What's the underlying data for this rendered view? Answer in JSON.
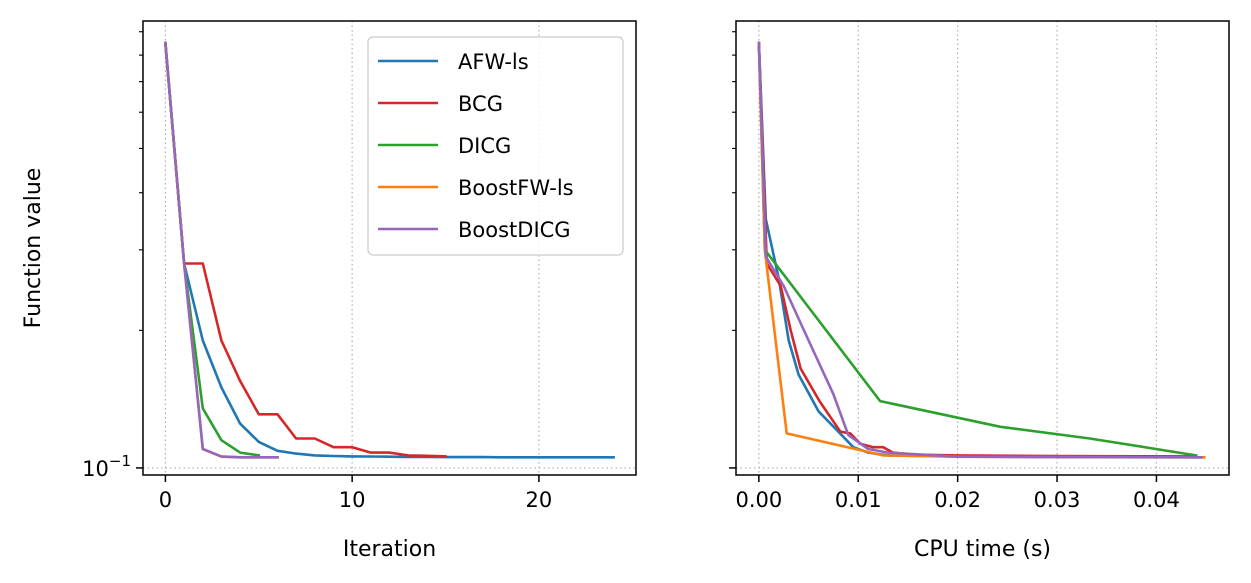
{
  "chart_data": [
    {
      "type": "line",
      "xlabel": "Iteration",
      "ylabel": "Function value",
      "yscale": "log",
      "xlim": [
        -1.2,
        25.2
      ],
      "ylim": [
        0.0965,
        0.95
      ],
      "xticks": [
        0,
        10,
        20
      ],
      "xtick_labels": [
        "0",
        "10",
        "20"
      ],
      "ytick_label": {
        "base": "10",
        "exponent": "−1"
      },
      "grid": "dotted",
      "legend_position": "upper right",
      "series": [
        {
          "name": "AFW-ls",
          "color": "#1f77b4",
          "x": [
            0,
            1,
            2,
            3,
            4,
            5,
            6,
            7,
            8,
            9,
            10,
            11,
            12,
            13,
            14,
            15,
            16,
            17,
            18,
            19,
            20,
            21,
            22,
            23,
            24
          ],
          "y": [
            0.85,
            0.28,
            0.19,
            0.15,
            0.125,
            0.114,
            0.109,
            0.1075,
            0.1065,
            0.1062,
            0.106,
            0.1059,
            0.1058,
            0.1057,
            0.1057,
            0.1056,
            0.1056,
            0.1056,
            0.1055,
            0.1055,
            0.1055,
            0.1055,
            0.1055,
            0.1055,
            0.1055
          ]
        },
        {
          "name": "BCG",
          "color": "#d62728",
          "x": [
            0,
            1,
            2,
            3,
            4,
            5,
            6,
            7,
            8,
            9,
            10,
            11,
            12,
            13,
            14,
            15
          ],
          "y": [
            0.85,
            0.28,
            0.28,
            0.19,
            0.155,
            0.131,
            0.131,
            0.116,
            0.116,
            0.111,
            0.111,
            0.108,
            0.108,
            0.1065,
            0.1063,
            0.106
          ]
        },
        {
          "name": "DICG",
          "color": "#2ca02c",
          "x": [
            0,
            1,
            2,
            3,
            4,
            5
          ],
          "y": [
            0.85,
            0.28,
            0.135,
            0.115,
            0.108,
            0.1065
          ]
        },
        {
          "name": "BoostFW-ls",
          "color": "#ff7f0e",
          "x": [
            0,
            1,
            2,
            3,
            4,
            5,
            6
          ],
          "y": [
            0.85,
            0.28,
            0.11,
            0.1058,
            0.1055,
            0.1055,
            0.1055
          ]
        },
        {
          "name": "BoostDICG",
          "color": "#9467bd",
          "x": [
            0,
            1,
            2,
            3,
            4,
            5,
            6
          ],
          "y": [
            0.85,
            0.28,
            0.11,
            0.106,
            0.1055,
            0.1055,
            0.1055
          ]
        }
      ]
    },
    {
      "type": "line",
      "xlabel": "CPU time (s)",
      "ylabel": "",
      "yscale": "log",
      "xlim": [
        -0.0023,
        0.0473
      ],
      "ylim": [
        0.0965,
        0.95
      ],
      "xticks": [
        0,
        0.01,
        0.02,
        0.03,
        0.04
      ],
      "xtick_labels": [
        "0.00",
        "0.01",
        "0.02",
        "0.03",
        "0.04"
      ],
      "grid": "dotted",
      "series": [
        {
          "name": "AFW-ls",
          "color": "#1f77b4",
          "x": [
            0,
            0.0007,
            0.002,
            0.003,
            0.004,
            0.006,
            0.008,
            0.0095,
            0.011,
            0.013,
            0.016,
            0.02,
            0.03,
            0.04,
            0.0445
          ],
          "y": [
            0.85,
            0.35,
            0.26,
            0.19,
            0.16,
            0.133,
            0.12,
            0.111,
            0.108,
            0.1065,
            0.1062,
            0.106,
            0.1057,
            0.1056,
            0.1055
          ]
        },
        {
          "name": "BCG",
          "color": "#d62728",
          "x": [
            0,
            0.0008,
            0.0022,
            0.0032,
            0.0042,
            0.0061,
            0.0082,
            0.0092,
            0.0102,
            0.0115,
            0.0125,
            0.0135,
            0.0155,
            0.02,
            0.03,
            0.044
          ],
          "y": [
            0.85,
            0.28,
            0.25,
            0.2,
            0.165,
            0.14,
            0.12,
            0.119,
            0.113,
            0.111,
            0.111,
            0.108,
            0.107,
            0.1065,
            0.1062,
            0.106
          ]
        },
        {
          "name": "DICG",
          "color": "#2ca02c",
          "x": [
            0,
            0.0006,
            0.0122,
            0.0243,
            0.0333,
            0.044
          ],
          "y": [
            0.85,
            0.3,
            0.14,
            0.123,
            0.116,
            0.1065
          ]
        },
        {
          "name": "BoostFW-ls",
          "color": "#ff7f0e",
          "x": [
            0,
            0.0006,
            0.0028,
            0.0125,
            0.02,
            0.03,
            0.04,
            0.0448
          ],
          "y": [
            0.85,
            0.3,
            0.119,
            0.1065,
            0.1058,
            0.1056,
            0.1055,
            0.1055
          ]
        },
        {
          "name": "BoostDICG",
          "color": "#9467bd",
          "x": [
            0,
            0.0007,
            0.0025,
            0.005,
            0.0075,
            0.009,
            0.011,
            0.013,
            0.02,
            0.03,
            0.0445
          ],
          "y": [
            0.85,
            0.29,
            0.25,
            0.19,
            0.145,
            0.118,
            0.11,
            0.108,
            0.1058,
            0.1056,
            0.1055
          ]
        }
      ]
    }
  ]
}
